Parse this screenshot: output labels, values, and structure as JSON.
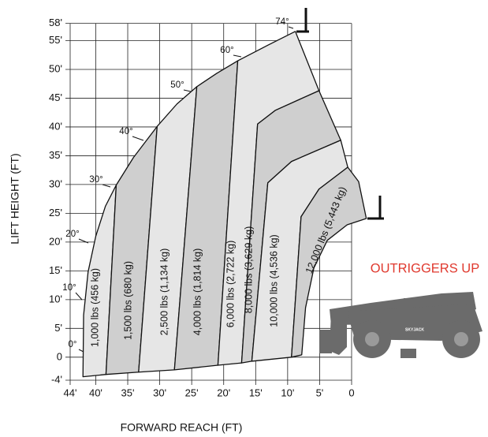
{
  "chart_data": {
    "type": "load-chart",
    "xlabel": "FORWARD REACH (FT)",
    "ylabel": "LIFT HEIGHT (FT)",
    "annotation": "OUTRIGGERS UP",
    "annotation_color": "#e03a2f",
    "machine_label": "SKYJACK",
    "xlim": [
      44,
      0
    ],
    "ylim": [
      -4,
      58
    ],
    "xticks": [
      {
        "value": 44,
        "label": "44'"
      },
      {
        "value": 40,
        "label": "40'"
      },
      {
        "value": 35,
        "label": "35'"
      },
      {
        "value": 30,
        "label": "30'"
      },
      {
        "value": 25,
        "label": "25'"
      },
      {
        "value": 20,
        "label": "20'"
      },
      {
        "value": 15,
        "label": "15'"
      },
      {
        "value": 10,
        "label": "10'"
      },
      {
        "value": 5,
        "label": "5'"
      },
      {
        "value": 0,
        "label": "0"
      }
    ],
    "yticks": [
      {
        "value": 58,
        "label": "58'"
      },
      {
        "value": 55,
        "label": "55'"
      },
      {
        "value": 50,
        "label": "50'"
      },
      {
        "value": 45,
        "label": "45'"
      },
      {
        "value": 40,
        "label": "40'"
      },
      {
        "value": 35,
        "label": "35'"
      },
      {
        "value": 30,
        "label": "30'"
      },
      {
        "value": 25,
        "label": "25'"
      },
      {
        "value": 20,
        "label": "20'"
      },
      {
        "value": 15,
        "label": "15'"
      },
      {
        "value": 10,
        "label": "10'"
      },
      {
        "value": 5,
        "label": "5'"
      },
      {
        "value": 0,
        "label": "0"
      },
      {
        "value": -4,
        "label": "-4'"
      }
    ],
    "grid": true,
    "angle_labels": [
      "0°",
      "10°",
      "20°",
      "30°",
      "40°",
      "50°",
      "60°",
      "74°"
    ],
    "zones": [
      {
        "label": "1,000 lbs (456 kg)",
        "color": "#e6e6e6",
        "x": [
          42.0,
          41.9,
          41.2,
          40.0,
          38.5,
          36.8,
          38.4
        ],
        "y": [
          -3.4,
          7.3,
          14.8,
          21.0,
          26.2,
          29.9,
          -3.0
        ]
      },
      {
        "label": "1,500 lbs (680 kg)",
        "color": "#cfcfcf",
        "x": [
          38.4,
          36.8,
          34.1,
          30.4,
          33.3
        ],
        "y": [
          -3.0,
          29.9,
          34.7,
          40.1,
          -2.6
        ]
      },
      {
        "label": "2,500 lbs (1,134 kg)",
        "color": "#e6e6e6",
        "x": [
          33.3,
          30.4,
          27.3,
          24.2,
          27.7
        ],
        "y": [
          -2.6,
          40.1,
          44.0,
          47.0,
          -2.2
        ]
      },
      {
        "label": "4,000 lbs (1,814 kg)",
        "color": "#cfcfcf",
        "x": [
          27.7,
          24.2,
          21.1,
          17.8,
          20.9
        ],
        "y": [
          -2.2,
          47.0,
          49.3,
          51.5,
          -1.4
        ]
      },
      {
        "label": "6,000 lbs (2,722 kg)",
        "color": "#e6e6e6",
        "x": [
          20.9,
          17.8,
          13.1,
          8.8,
          5.1,
          11.9,
          14.7,
          17.2
        ],
        "y": [
          -1.4,
          51.5,
          54.2,
          56.6,
          46.3,
          42.9,
          40.5,
          -1.0
        ]
      },
      {
        "label": "8,000 lbs (3,629 kg)",
        "color": "#cfcfcf",
        "x": [
          17.2,
          14.7,
          11.9,
          5.1,
          1.7,
          9.4,
          13.1,
          15.6
        ],
        "y": [
          -1.0,
          40.5,
          42.9,
          46.3,
          37.7,
          34.0,
          30.3,
          -0.7
        ]
      },
      {
        "label": "10,000 lbs (4,536 kg)",
        "color": "#e6e6e6",
        "x": [
          15.6,
          13.1,
          9.4,
          1.7,
          0.6,
          5.1,
          7.9,
          9.4
        ],
        "y": [
          -0.7,
          30.3,
          34.0,
          37.7,
          33.0,
          29.2,
          24.4,
          0
        ]
      },
      {
        "label": "12,000 lbs (5,443 kg)",
        "color": "#cfcfcf",
        "x": [
          9.4,
          7.9,
          5.1,
          0.6,
          -1.1,
          -2.3,
          0.7,
          3.8,
          5.9,
          7.2,
          7.8
        ],
        "y": [
          0,
          24.4,
          29.2,
          33.0,
          30.5,
          24.1,
          23.0,
          20.3,
          15.5,
          8.6,
          0.4
        ]
      }
    ]
  }
}
